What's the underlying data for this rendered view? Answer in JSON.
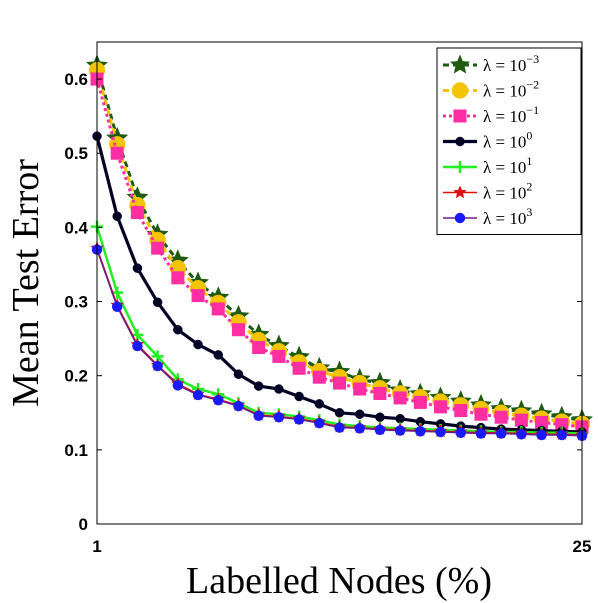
{
  "chart_data": {
    "type": "line",
    "xlabel": "Labelled Nodes (%)",
    "ylabel": "Mean Test Error",
    "xlim": [
      1,
      25
    ],
    "ylim": [
      0,
      0.65
    ],
    "x_tick_labels": [
      "1",
      "25"
    ],
    "y_tick_labels": [
      "0",
      "0.1",
      "0.2",
      "0.3",
      "0.4",
      "0.5",
      "0.6"
    ],
    "grid": false,
    "legend_position": "top-right",
    "x": [
      1,
      2,
      3,
      4,
      5,
      6,
      7,
      8,
      9,
      10,
      11,
      12,
      13,
      14,
      15,
      16,
      17,
      18,
      19,
      20,
      21,
      22,
      23,
      24,
      25
    ],
    "series": [
      {
        "name": "λ = 10^-3",
        "label_base": "λ = 10",
        "label_exp": "−3",
        "color": "#1f5a10",
        "marker": "star",
        "linestyle": "dashed",
        "values": [
          0.618,
          0.52,
          0.44,
          0.39,
          0.355,
          0.325,
          0.305,
          0.28,
          0.255,
          0.24,
          0.225,
          0.21,
          0.205,
          0.195,
          0.19,
          0.18,
          0.175,
          0.17,
          0.165,
          0.16,
          0.155,
          0.152,
          0.148,
          0.144,
          0.14
        ]
      },
      {
        "name": "λ = 10^-2",
        "label_base": "λ = 10",
        "label_exp": "−2",
        "color": "#f5c400",
        "marker": "circle",
        "linestyle": "dashed",
        "values": [
          0.612,
          0.512,
          0.43,
          0.383,
          0.345,
          0.318,
          0.298,
          0.272,
          0.248,
          0.233,
          0.218,
          0.206,
          0.198,
          0.19,
          0.183,
          0.176,
          0.171,
          0.165,
          0.16,
          0.155,
          0.15,
          0.146,
          0.142,
          0.138,
          0.135
        ]
      },
      {
        "name": "λ = 10^-1",
        "label_base": "λ = 10",
        "label_exp": "−1",
        "color": "#ff2ea3",
        "marker": "square",
        "linestyle": "dotted",
        "values": [
          0.6,
          0.5,
          0.42,
          0.372,
          0.332,
          0.308,
          0.29,
          0.262,
          0.238,
          0.226,
          0.21,
          0.198,
          0.19,
          0.182,
          0.176,
          0.17,
          0.164,
          0.158,
          0.153,
          0.148,
          0.144,
          0.14,
          0.137,
          0.134,
          0.131
        ]
      },
      {
        "name": "λ = 10^0",
        "label_base": "λ = 10",
        "label_exp": "0",
        "color": "#000022",
        "marker": "circle",
        "linestyle": "solid",
        "values": [
          0.523,
          0.415,
          0.345,
          0.299,
          0.262,
          0.242,
          0.228,
          0.202,
          0.186,
          0.182,
          0.172,
          0.162,
          0.15,
          0.148,
          0.144,
          0.142,
          0.138,
          0.135,
          0.132,
          0.13,
          0.128,
          0.127,
          0.126,
          0.125,
          0.124
        ]
      },
      {
        "name": "λ = 10^1",
        "label_base": "λ = 10",
        "label_exp": "1",
        "color": "#22ee22",
        "marker": "plus",
        "linestyle": "solid",
        "values": [
          0.401,
          0.312,
          0.255,
          0.226,
          0.195,
          0.182,
          0.175,
          0.163,
          0.15,
          0.148,
          0.145,
          0.14,
          0.134,
          0.132,
          0.13,
          0.129,
          0.128,
          0.127,
          0.126,
          0.125,
          0.124,
          0.124,
          0.123,
          0.123,
          0.122
        ]
      },
      {
        "name": "λ = 10^2",
        "label_base": "λ = 10",
        "label_exp": "2",
        "color": "#e01010",
        "marker": "star",
        "linestyle": "solid",
        "values": [
          0.372,
          0.295,
          0.242,
          0.214,
          0.189,
          0.175,
          0.168,
          0.16,
          0.147,
          0.145,
          0.142,
          0.137,
          0.131,
          0.13,
          0.128,
          0.127,
          0.126,
          0.125,
          0.124,
          0.123,
          0.123,
          0.122,
          0.121,
          0.121,
          0.12
        ]
      },
      {
        "name": "λ = 10^3",
        "label_base": "λ = 10",
        "label_exp": "3",
        "color": "#1a1aff",
        "marker": "circle",
        "linestyle": "solid",
        "line_color": "#6a1a8a",
        "values": [
          0.37,
          0.293,
          0.24,
          0.213,
          0.187,
          0.174,
          0.167,
          0.159,
          0.146,
          0.144,
          0.141,
          0.136,
          0.13,
          0.129,
          0.127,
          0.126,
          0.125,
          0.124,
          0.123,
          0.122,
          0.122,
          0.121,
          0.12,
          0.12,
          0.119
        ]
      }
    ]
  }
}
